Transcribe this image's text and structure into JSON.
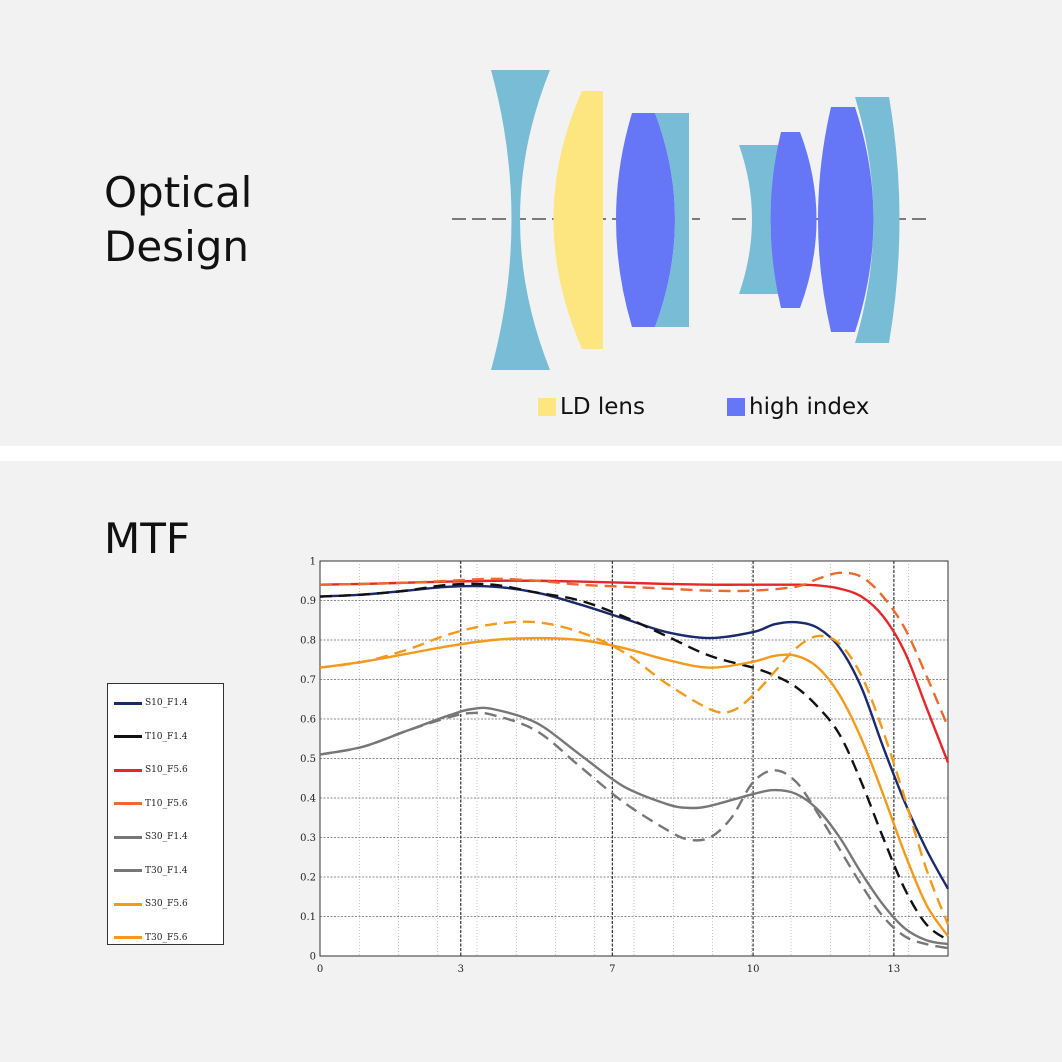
{
  "optical": {
    "title": "Optical\nDesign",
    "legend": [
      {
        "label": "LD lens",
        "color": "#fde580"
      },
      {
        "label": "high index",
        "color": "#6577f7"
      }
    ],
    "colors": {
      "standard": "#79bcd6",
      "ld": "#fde580",
      "high_index": "#6577f7"
    }
  },
  "mtf": {
    "title": "MTF"
  },
  "chart_data": {
    "type": "line",
    "title": "MTF",
    "xlabel": "",
    "ylabel": "",
    "xlim": [
      0,
      14.5
    ],
    "ylim": [
      0,
      1
    ],
    "grid": true,
    "x_ticks": [
      "0",
      "3",
      "7",
      "10",
      "13"
    ],
    "x_tick_values": [
      0,
      3.25,
      6.75,
      10,
      13.25
    ],
    "y_ticks": [
      "0",
      "0.1",
      "0.2",
      "0.3",
      "0.4",
      "0.5",
      "0.6",
      "0.7",
      "0.8",
      "0.9",
      "1"
    ],
    "legend_position": "left",
    "series": [
      {
        "name": "S10_F1.4",
        "color": "#1a2a6c",
        "dash": false,
        "x": [
          0,
          1,
          2,
          3,
          4,
          5,
          6,
          7,
          8,
          9,
          10,
          10.5,
          11,
          11.5,
          12,
          12.5,
          13,
          13.5,
          14,
          14.5
        ],
        "values": [
          0.91,
          0.915,
          0.925,
          0.935,
          0.935,
          0.92,
          0.89,
          0.855,
          0.82,
          0.805,
          0.82,
          0.84,
          0.845,
          0.83,
          0.78,
          0.68,
          0.53,
          0.39,
          0.27,
          0.17
        ]
      },
      {
        "name": "T10_F1.4",
        "color": "#111111",
        "dash": true,
        "x": [
          0,
          1,
          2,
          3,
          4,
          5,
          6,
          7,
          8,
          9,
          10,
          10.5,
          11,
          11.5,
          12,
          12.5,
          13,
          13.5,
          14,
          14.5
        ],
        "values": [
          0.91,
          0.915,
          0.925,
          0.94,
          0.94,
          0.92,
          0.9,
          0.86,
          0.81,
          0.76,
          0.73,
          0.71,
          0.68,
          0.63,
          0.56,
          0.44,
          0.3,
          0.17,
          0.08,
          0.04
        ]
      },
      {
        "name": "S10_F5.6",
        "color": "#e6262b",
        "dash": false,
        "x": [
          0,
          1,
          2,
          3,
          4,
          5,
          6,
          7,
          8,
          9,
          10,
          11,
          11.5,
          12,
          12.5,
          13,
          13.5,
          14,
          14.5
        ],
        "values": [
          0.94,
          0.942,
          0.945,
          0.948,
          0.95,
          0.95,
          0.948,
          0.945,
          0.942,
          0.94,
          0.94,
          0.94,
          0.938,
          0.93,
          0.91,
          0.86,
          0.77,
          0.63,
          0.49
        ]
      },
      {
        "name": "T10_F5.6",
        "color": "#ec6a2c",
        "dash": true,
        "x": [
          0,
          1,
          2,
          3,
          4,
          5,
          6,
          7,
          8,
          9,
          10,
          11,
          11.5,
          12,
          12.5,
          13,
          13.5,
          14,
          14.5
        ],
        "values": [
          0.94,
          0.942,
          0.945,
          0.95,
          0.955,
          0.95,
          0.94,
          0.935,
          0.93,
          0.925,
          0.925,
          0.935,
          0.955,
          0.97,
          0.96,
          0.91,
          0.83,
          0.71,
          0.58
        ]
      },
      {
        "name": "S30_F1.4",
        "color": "#777777",
        "dash": false,
        "x": [
          0,
          1,
          2,
          3,
          3.5,
          4,
          5,
          6,
          7,
          8,
          8.5,
          9,
          10,
          10.5,
          11,
          11.5,
          12,
          12.5,
          13,
          13.5,
          14,
          14.5
        ],
        "values": [
          0.51,
          0.53,
          0.57,
          0.61,
          0.625,
          0.625,
          0.59,
          0.51,
          0.43,
          0.385,
          0.375,
          0.38,
          0.41,
          0.42,
          0.41,
          0.37,
          0.3,
          0.21,
          0.13,
          0.07,
          0.04,
          0.03
        ]
      },
      {
        "name": "T30_F1.4",
        "color": "#777777",
        "dash": true,
        "x": [
          0,
          1,
          2,
          3,
          3.5,
          4,
          5,
          6,
          7,
          8,
          8.5,
          9,
          9.5,
          10,
          10.5,
          11,
          11.5,
          12,
          12.5,
          13,
          13.5,
          14,
          14.5
        ],
        "values": [
          0.51,
          0.53,
          0.57,
          0.605,
          0.615,
          0.61,
          0.57,
          0.48,
          0.39,
          0.32,
          0.295,
          0.3,
          0.35,
          0.44,
          0.47,
          0.44,
          0.36,
          0.27,
          0.18,
          0.1,
          0.05,
          0.03,
          0.02
        ]
      },
      {
        "name": "S30_F5.6",
        "color": "#f39a1c",
        "dash": false,
        "x": [
          0,
          1,
          2,
          3,
          4,
          5,
          6,
          7,
          8,
          9,
          10,
          10.5,
          11,
          11.5,
          12,
          12.5,
          13,
          13.5,
          14,
          14.5
        ],
        "values": [
          0.73,
          0.745,
          0.765,
          0.785,
          0.8,
          0.805,
          0.8,
          0.78,
          0.75,
          0.73,
          0.745,
          0.76,
          0.76,
          0.73,
          0.66,
          0.55,
          0.41,
          0.26,
          0.13,
          0.05
        ]
      },
      {
        "name": "T30_F5.6",
        "color": "#f39a1c",
        "dash": true,
        "x": [
          0,
          1,
          2,
          3,
          4,
          5,
          6,
          7,
          8,
          9,
          9.5,
          10,
          10.5,
          11,
          11.5,
          12,
          12.5,
          13,
          13.5,
          14,
          14.5
        ],
        "values": [
          0.73,
          0.745,
          0.775,
          0.815,
          0.84,
          0.845,
          0.82,
          0.77,
          0.69,
          0.625,
          0.62,
          0.66,
          0.72,
          0.78,
          0.81,
          0.79,
          0.71,
          0.57,
          0.4,
          0.22,
          0.08
        ]
      }
    ]
  }
}
